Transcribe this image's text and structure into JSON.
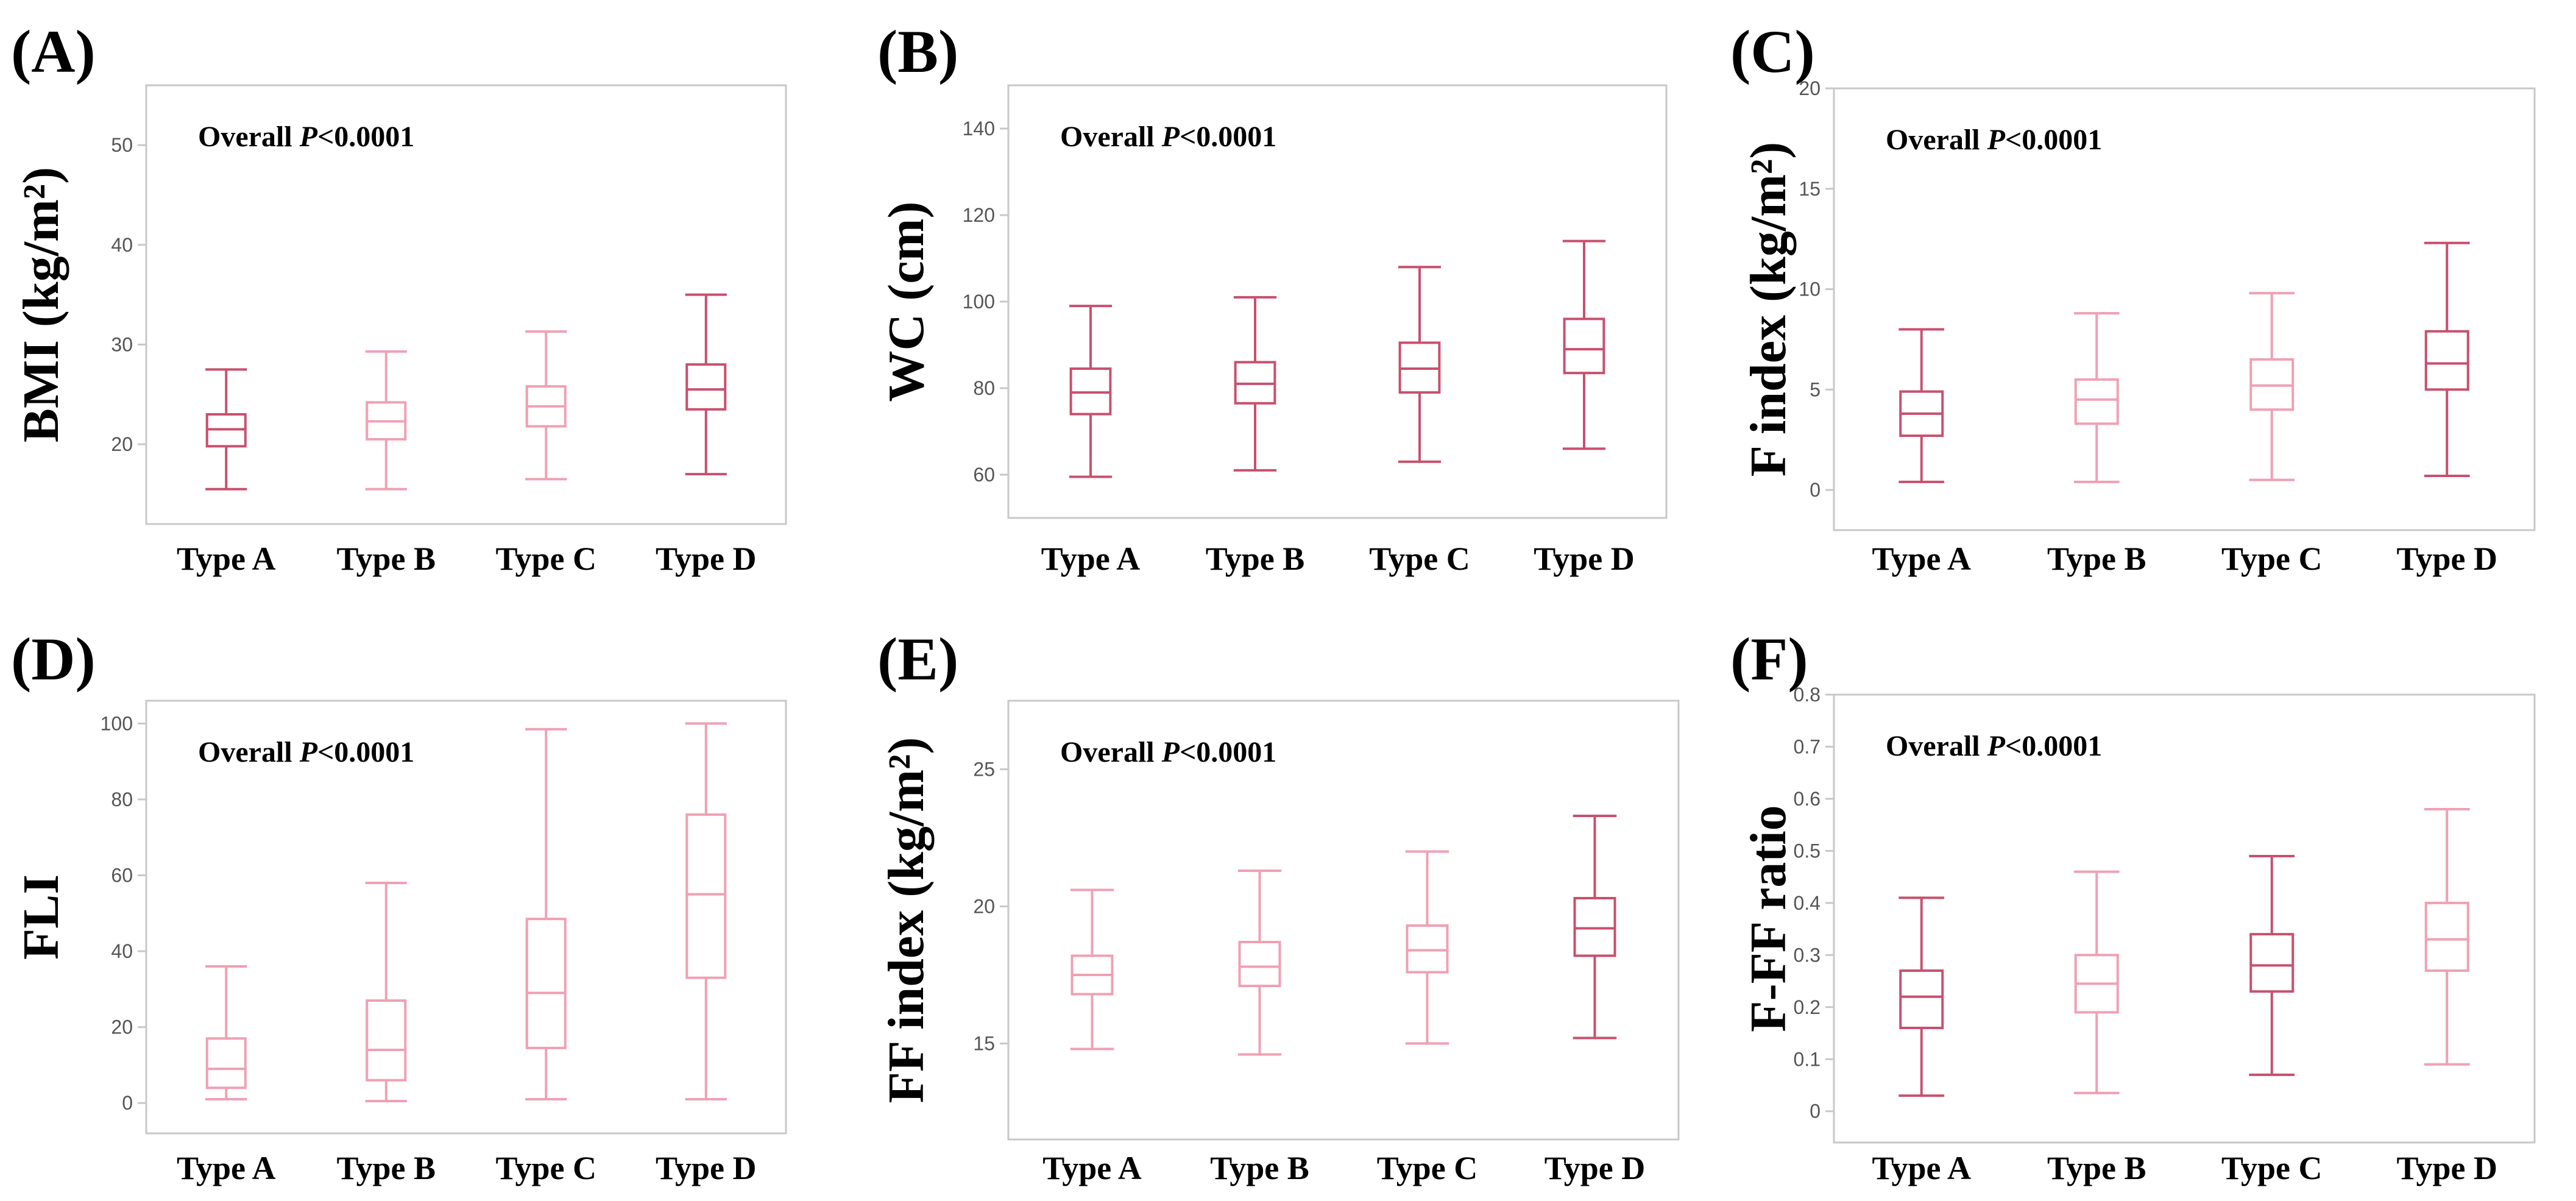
{
  "colors": {
    "light_box": "#f0a0b4",
    "dark_box": "#c8506e",
    "frame": "#c8c8c8",
    "tick_text": "#555555"
  },
  "chart_data": [
    {
      "panel": "(A)",
      "type": "box",
      "ylabel": "BMI (kg/m²)",
      "annotation_prefix": "Overall ",
      "annotation_p": "P",
      "annotation_value": "<0.0001",
      "categories": [
        "Type A",
        "Type B",
        "Type C",
        "Type D"
      ],
      "ylim": [
        12,
        56
      ],
      "yticks": [
        20,
        30,
        40,
        50
      ],
      "boxes": [
        {
          "min": 15.5,
          "q1": 19.8,
          "median": 21.5,
          "q3": 23.0,
          "max": 27.5,
          "shade": "dark"
        },
        {
          "min": 15.5,
          "q1": 20.5,
          "median": 22.3,
          "q3": 24.2,
          "max": 29.3,
          "shade": "light"
        },
        {
          "min": 16.5,
          "q1": 21.8,
          "median": 23.8,
          "q3": 25.8,
          "max": 31.3,
          "shade": "light"
        },
        {
          "min": 17.0,
          "q1": 23.5,
          "median": 25.5,
          "q3": 28.0,
          "max": 35.0,
          "shade": "dark"
        }
      ]
    },
    {
      "panel": "(B)",
      "type": "box",
      "ylabel": "WC (cm)",
      "annotation_prefix": "Overall ",
      "annotation_p": "P",
      "annotation_value": "<0.0001",
      "categories": [
        "Type A",
        "Type B",
        "Type C",
        "Type D"
      ],
      "ylim": [
        50,
        150
      ],
      "yticks": [
        60,
        80,
        100,
        120,
        140
      ],
      "boxes": [
        {
          "min": 59.5,
          "q1": 74.0,
          "median": 79.0,
          "q3": 84.5,
          "max": 99.0,
          "shade": "dark"
        },
        {
          "min": 61.0,
          "q1": 76.5,
          "median": 81.0,
          "q3": 86.0,
          "max": 101.0,
          "shade": "dark"
        },
        {
          "min": 63.0,
          "q1": 79.0,
          "median": 84.5,
          "q3": 90.5,
          "max": 108.0,
          "shade": "dark"
        },
        {
          "min": 66.0,
          "q1": 83.5,
          "median": 89.0,
          "q3": 96.0,
          "max": 114.0,
          "shade": "dark"
        }
      ]
    },
    {
      "panel": "(C)",
      "type": "box",
      "ylabel": "F index (kg/m²)",
      "annotation_prefix": "Overall ",
      "annotation_p": "P",
      "annotation_value": "<0.0001",
      "categories": [
        "Type A",
        "Type B",
        "Type C",
        "Type D"
      ],
      "ylim": [
        -2,
        20
      ],
      "yticks": [
        0,
        5,
        10,
        15,
        20
      ],
      "boxes": [
        {
          "min": 0.4,
          "q1": 2.7,
          "median": 3.8,
          "q3": 4.9,
          "max": 8.0,
          "shade": "dark"
        },
        {
          "min": 0.4,
          "q1": 3.3,
          "median": 4.5,
          "q3": 5.5,
          "max": 8.8,
          "shade": "light"
        },
        {
          "min": 0.5,
          "q1": 4.0,
          "median": 5.2,
          "q3": 6.5,
          "max": 9.8,
          "shade": "light"
        },
        {
          "min": 0.7,
          "q1": 5.0,
          "median": 6.3,
          "q3": 7.9,
          "max": 12.3,
          "shade": "dark"
        }
      ]
    },
    {
      "panel": "(D)",
      "type": "box",
      "ylabel": "FLI",
      "annotation_prefix": "Overall ",
      "annotation_p": "P",
      "annotation_value": "<0.0001",
      "categories": [
        "Type A",
        "Type B",
        "Type C",
        "Type D"
      ],
      "ylim": [
        -8,
        106
      ],
      "yticks": [
        0,
        20,
        40,
        60,
        80,
        100
      ],
      "boxes": [
        {
          "min": 1.0,
          "q1": 4.0,
          "median": 9.0,
          "q3": 17.0,
          "max": 36.0,
          "shade": "light"
        },
        {
          "min": 0.5,
          "q1": 6.0,
          "median": 14.0,
          "q3": 27.0,
          "max": 58.0,
          "shade": "light"
        },
        {
          "min": 1.0,
          "q1": 14.5,
          "median": 29.0,
          "q3": 48.5,
          "max": 98.5,
          "shade": "light"
        },
        {
          "min": 1.0,
          "q1": 33.0,
          "median": 55.0,
          "q3": 76.0,
          "max": 100.0,
          "shade": "light"
        }
      ]
    },
    {
      "panel": "(E)",
      "type": "box",
      "ylabel": "FF index (kg/m²)",
      "annotation_prefix": "Overall ",
      "annotation_p": "P",
      "annotation_value": "<0.0001",
      "categories": [
        "Type A",
        "Type B",
        "Type C",
        "Type D"
      ],
      "ylim": [
        11.5,
        27.5
      ],
      "yticks": [
        15,
        20,
        25
      ],
      "boxes": [
        {
          "min": 14.8,
          "q1": 16.8,
          "median": 17.5,
          "q3": 18.2,
          "max": 20.6,
          "shade": "light"
        },
        {
          "min": 14.6,
          "q1": 17.1,
          "median": 17.8,
          "q3": 18.7,
          "max": 21.3,
          "shade": "light"
        },
        {
          "min": 15.0,
          "q1": 17.6,
          "median": 18.4,
          "q3": 19.3,
          "max": 22.0,
          "shade": "light"
        },
        {
          "min": 15.2,
          "q1": 18.2,
          "median": 19.2,
          "q3": 20.3,
          "max": 23.3,
          "shade": "dark"
        }
      ]
    },
    {
      "panel": "(F)",
      "type": "box",
      "ylabel": "F-FF ratio",
      "annotation_prefix": "Overall ",
      "annotation_p": "P",
      "annotation_value": "<0.0001",
      "categories": [
        "Type A",
        "Type B",
        "Type C",
        "Type D"
      ],
      "ylim": [
        -0.06,
        0.8
      ],
      "yticks": [
        0,
        0.1,
        0.2,
        0.3,
        0.4,
        0.5,
        0.6,
        0.7,
        0.8
      ],
      "tick_labels": [
        "0",
        "0.1",
        "0.2",
        "0.3",
        "0.4",
        "0.5",
        "0.6",
        "0.7",
        "0.8"
      ],
      "boxes": [
        {
          "min": 0.03,
          "q1": 0.16,
          "median": 0.22,
          "q3": 0.27,
          "max": 0.41,
          "shade": "dark"
        },
        {
          "min": 0.035,
          "q1": 0.19,
          "median": 0.245,
          "q3": 0.3,
          "max": 0.46,
          "shade": "light"
        },
        {
          "min": 0.07,
          "q1": 0.23,
          "median": 0.28,
          "q3": 0.34,
          "max": 0.49,
          "shade": "dark"
        },
        {
          "min": 0.09,
          "q1": 0.27,
          "median": 0.33,
          "q3": 0.4,
          "max": 0.58,
          "shade": "light"
        }
      ]
    }
  ]
}
